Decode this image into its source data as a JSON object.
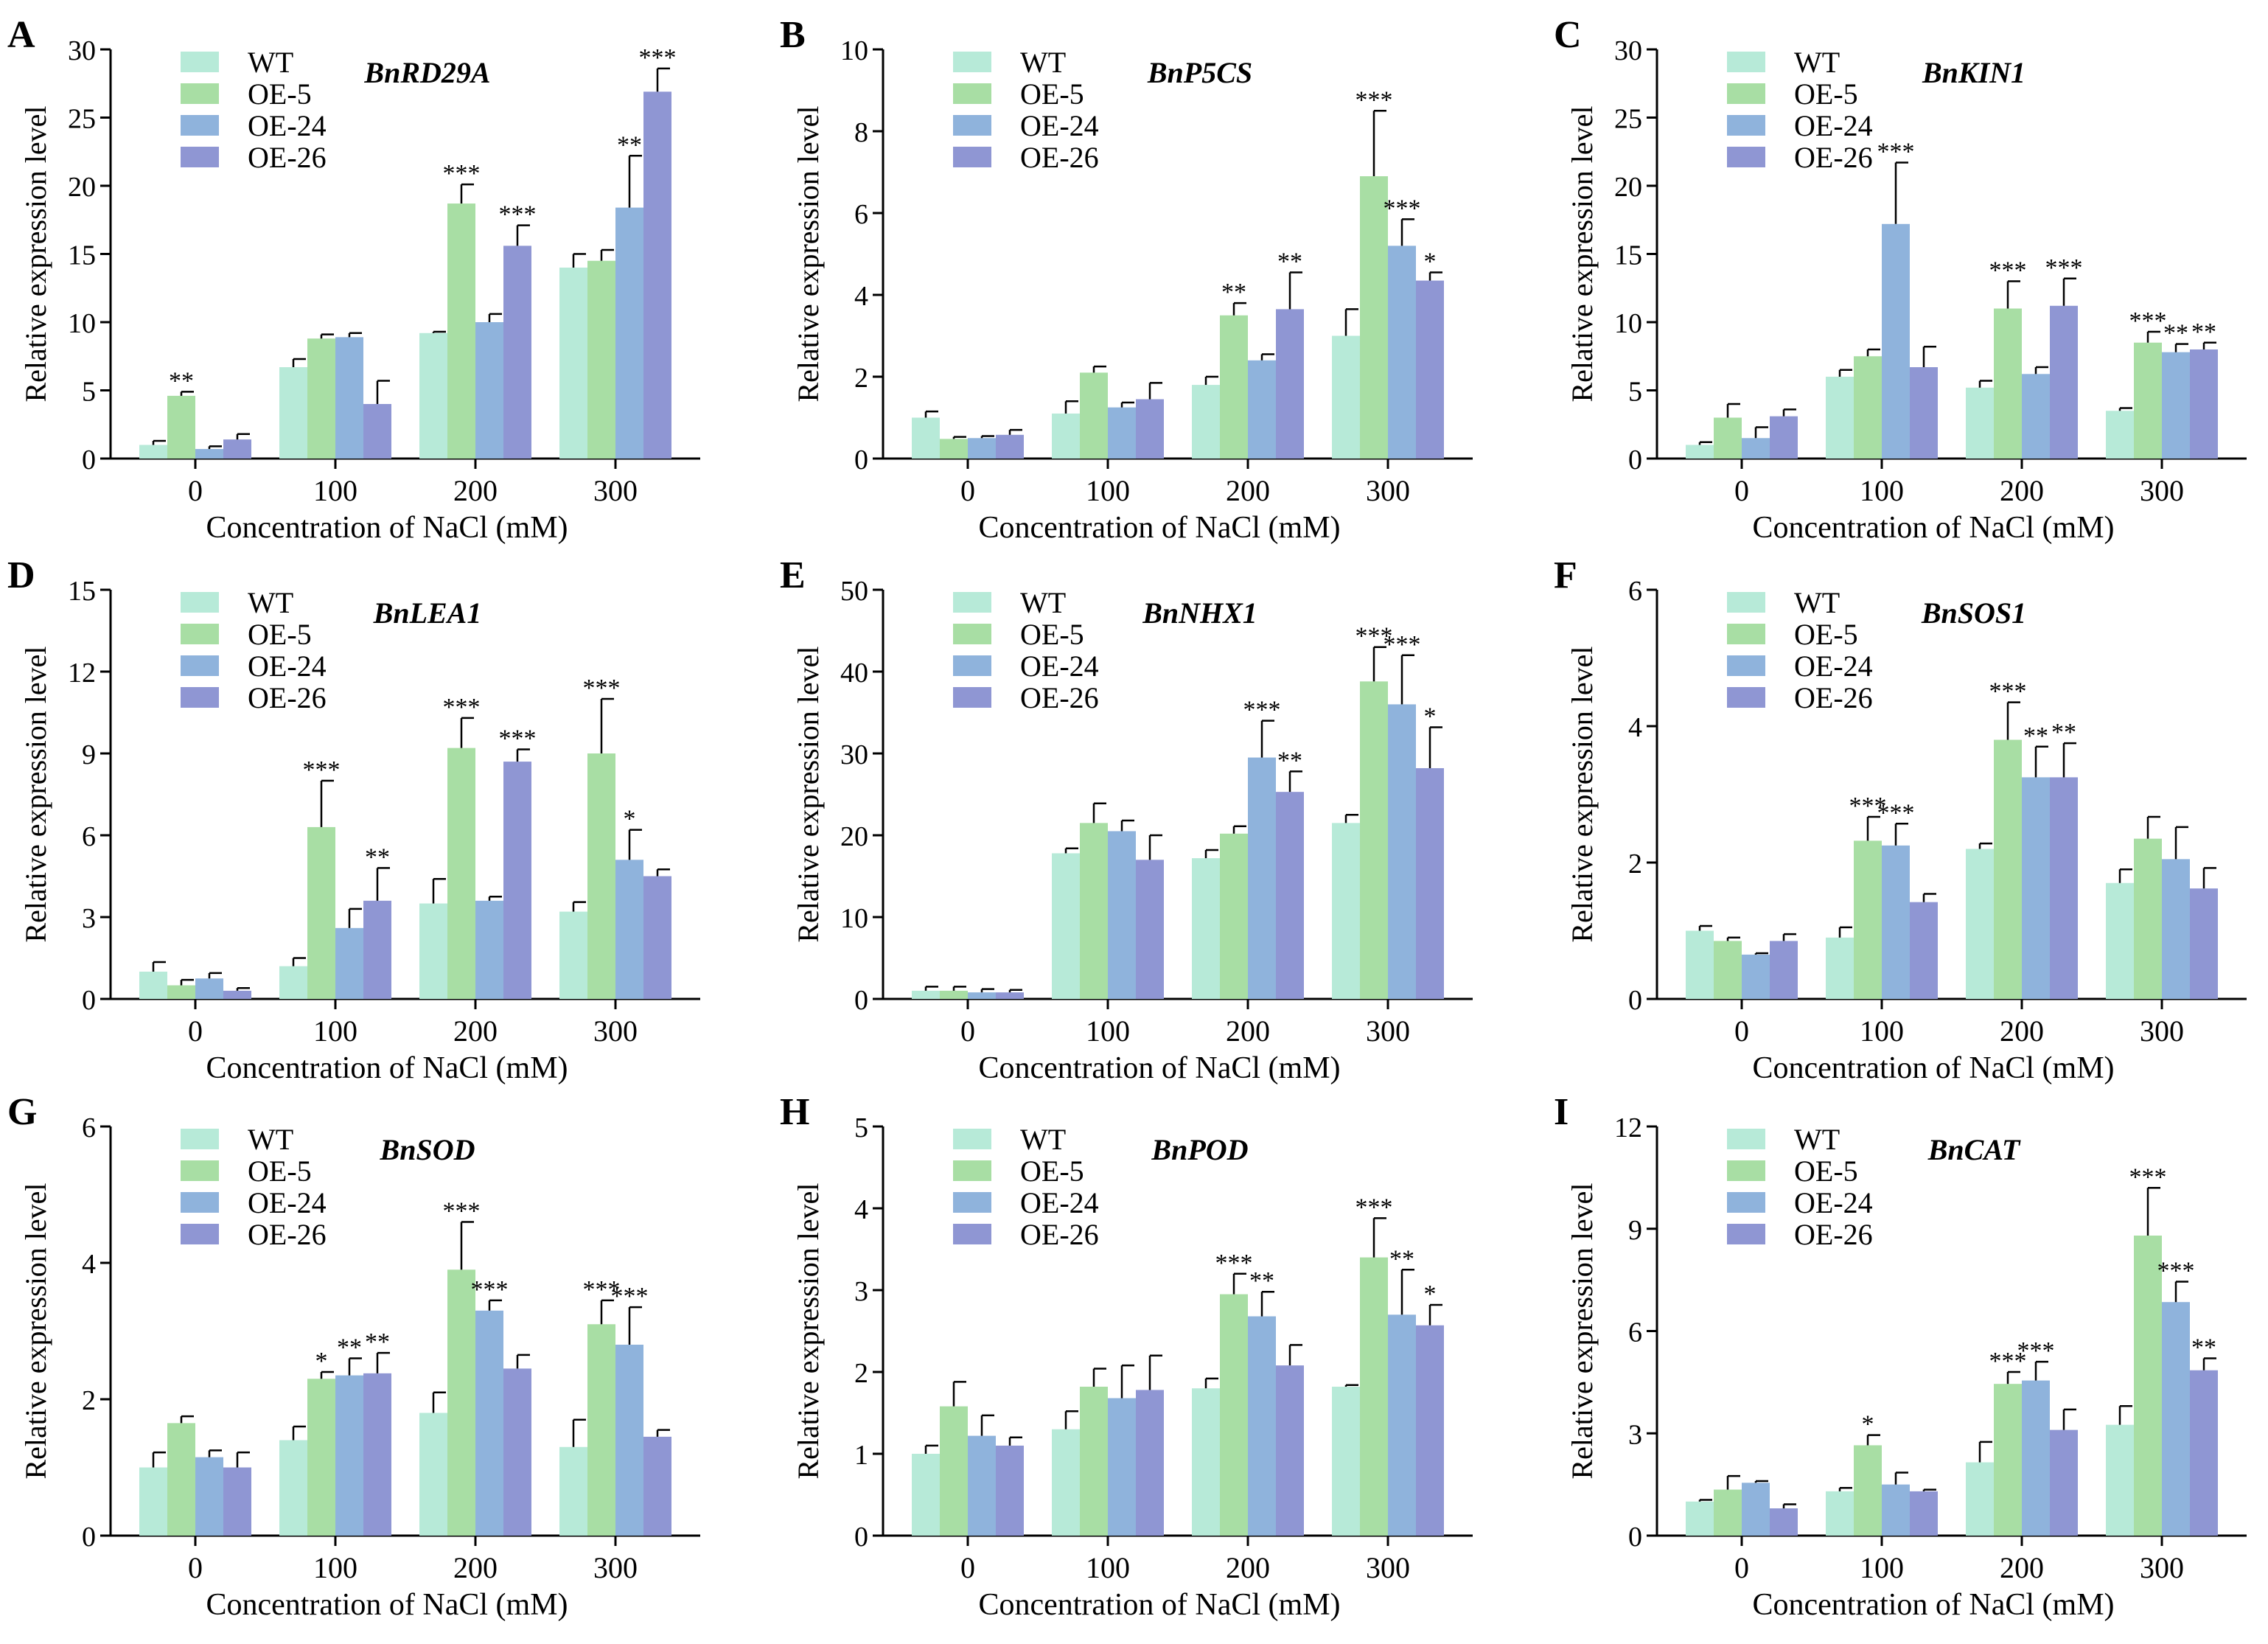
{
  "figure": {
    "categories": [
      "0",
      "100",
      "200",
      "300"
    ],
    "xlabel": "Concentration of NaCl (mM)",
    "ylabel": "Relative expression level",
    "legend": [
      "WT",
      "OE-5",
      "OE-24",
      "OE-26"
    ],
    "colors": [
      "#b7ead8",
      "#a8dea4",
      "#8fb3dc",
      "#8f96d3"
    ]
  },
  "chart_data": [
    {
      "type": "bar",
      "panel": "A",
      "title": "BnRD29A",
      "ylim": [
        0,
        30
      ],
      "yticks": [
        0,
        5,
        10,
        15,
        20,
        25,
        30
      ],
      "series": [
        {
          "name": "WT",
          "values": [
            1.0,
            6.7,
            9.2,
            14.0
          ],
          "errors": [
            0.3,
            0.6,
            0.1,
            1.0
          ],
          "sig": [
            "",
            "",
            "",
            ""
          ]
        },
        {
          "name": "OE-5",
          "values": [
            4.6,
            8.8,
            18.7,
            14.5
          ],
          "errors": [
            0.3,
            0.3,
            1.4,
            0.8
          ],
          "sig": [
            "**",
            "",
            "***",
            ""
          ]
        },
        {
          "name": "OE-24",
          "values": [
            0.7,
            8.9,
            10.0,
            18.4
          ],
          "errors": [
            0.2,
            0.3,
            0.6,
            3.8
          ],
          "sig": [
            "",
            "",
            "",
            "**"
          ]
        },
        {
          "name": "OE-26",
          "values": [
            1.4,
            4.0,
            15.6,
            26.9
          ],
          "errors": [
            0.4,
            1.7,
            1.5,
            1.7
          ],
          "sig": [
            "",
            "",
            "***",
            "***"
          ]
        }
      ]
    },
    {
      "type": "bar",
      "panel": "B",
      "title": "BnP5CS",
      "ylim": [
        0,
        10
      ],
      "yticks": [
        0,
        2,
        4,
        6,
        8,
        10
      ],
      "series": [
        {
          "name": "WT",
          "values": [
            1.0,
            1.1,
            1.8,
            3.0
          ],
          "errors": [
            0.15,
            0.3,
            0.2,
            0.65
          ],
          "sig": [
            "",
            "",
            "",
            ""
          ]
        },
        {
          "name": "OE-5",
          "values": [
            0.48,
            2.1,
            3.5,
            6.9
          ],
          "errors": [
            0.05,
            0.15,
            0.3,
            1.6
          ],
          "sig": [
            "",
            "",
            "**",
            "***"
          ]
        },
        {
          "name": "OE-24",
          "values": [
            0.5,
            1.25,
            2.4,
            5.2
          ],
          "errors": [
            0.05,
            0.12,
            0.15,
            0.65
          ],
          "sig": [
            "",
            "",
            "",
            "***"
          ]
        },
        {
          "name": "OE-26",
          "values": [
            0.58,
            1.45,
            3.65,
            4.35
          ],
          "errors": [
            0.12,
            0.4,
            0.9,
            0.2
          ],
          "sig": [
            "",
            "",
            "**",
            "*"
          ]
        }
      ]
    },
    {
      "type": "bar",
      "panel": "C",
      "title": "BnKIN1",
      "ylim": [
        0,
        30
      ],
      "yticks": [
        0,
        5,
        10,
        15,
        20,
        25,
        30
      ],
      "series": [
        {
          "name": "WT",
          "values": [
            1.0,
            6.0,
            5.2,
            3.5
          ],
          "errors": [
            0.2,
            0.5,
            0.5,
            0.2
          ],
          "sig": [
            "",
            "",
            "",
            ""
          ]
        },
        {
          "name": "OE-5",
          "values": [
            3.0,
            7.5,
            11.0,
            8.5
          ],
          "errors": [
            1.0,
            0.5,
            2.0,
            0.8
          ],
          "sig": [
            "",
            "",
            "***",
            "***"
          ]
        },
        {
          "name": "OE-24",
          "values": [
            1.5,
            17.2,
            6.2,
            7.8
          ],
          "errors": [
            0.8,
            4.5,
            0.5,
            0.6
          ],
          "sig": [
            "",
            "***",
            "",
            "**"
          ]
        },
        {
          "name": "OE-26",
          "values": [
            3.1,
            6.7,
            11.2,
            8.0
          ],
          "errors": [
            0.5,
            1.5,
            2.0,
            0.5
          ],
          "sig": [
            "",
            "",
            "***",
            "**"
          ]
        }
      ]
    },
    {
      "type": "bar",
      "panel": "D",
      "title": "BnLEA1",
      "ylim": [
        0,
        15
      ],
      "yticks": [
        0,
        3,
        6,
        9,
        12,
        15
      ],
      "series": [
        {
          "name": "WT",
          "values": [
            1.0,
            1.2,
            3.5,
            3.2
          ],
          "errors": [
            0.35,
            0.3,
            0.9,
            0.35
          ],
          "sig": [
            "",
            "",
            "",
            ""
          ]
        },
        {
          "name": "OE-5",
          "values": [
            0.5,
            6.3,
            9.2,
            9.0
          ],
          "errors": [
            0.2,
            1.7,
            1.1,
            2.0
          ],
          "sig": [
            "",
            "***",
            "***",
            "***"
          ]
        },
        {
          "name": "OE-24",
          "values": [
            0.75,
            2.6,
            3.6,
            5.1
          ],
          "errors": [
            0.2,
            0.7,
            0.15,
            1.1
          ],
          "sig": [
            "",
            "",
            "",
            "*"
          ]
        },
        {
          "name": "OE-26",
          "values": [
            0.3,
            3.6,
            8.7,
            4.5
          ],
          "errors": [
            0.1,
            1.2,
            0.45,
            0.25
          ],
          "sig": [
            "",
            "**",
            "***",
            ""
          ]
        }
      ]
    },
    {
      "type": "bar",
      "panel": "E",
      "title": "BnNHX1",
      "ylim": [
        0,
        50
      ],
      "yticks": [
        0,
        10,
        20,
        30,
        40,
        50
      ],
      "series": [
        {
          "name": "WT",
          "values": [
            1.0,
            17.8,
            17.2,
            21.5
          ],
          "errors": [
            0.5,
            0.6,
            1.0,
            1.0
          ],
          "sig": [
            "",
            "",
            "",
            ""
          ]
        },
        {
          "name": "OE-5",
          "values": [
            1.0,
            21.5,
            20.2,
            38.8
          ],
          "errors": [
            0.5,
            2.4,
            0.9,
            4.2
          ],
          "sig": [
            "",
            "",
            "",
            "***"
          ]
        },
        {
          "name": "OE-24",
          "values": [
            0.8,
            20.5,
            29.5,
            36.0
          ],
          "errors": [
            0.4,
            1.3,
            4.5,
            6.0
          ],
          "sig": [
            "",
            "",
            "***",
            "***"
          ]
        },
        {
          "name": "OE-26",
          "values": [
            0.8,
            17.0,
            25.3,
            28.2
          ],
          "errors": [
            0.3,
            3.0,
            2.5,
            5.0
          ],
          "sig": [
            "",
            "",
            "**",
            "*"
          ]
        }
      ]
    },
    {
      "type": "bar",
      "panel": "F",
      "title": "BnSOS1",
      "ylim": [
        0,
        6
      ],
      "yticks": [
        0,
        2,
        4,
        6
      ],
      "series": [
        {
          "name": "WT",
          "values": [
            1.0,
            0.9,
            2.2,
            1.7
          ],
          "errors": [
            0.07,
            0.15,
            0.08,
            0.2
          ],
          "sig": [
            "",
            "",
            "",
            ""
          ]
        },
        {
          "name": "OE-5",
          "values": [
            0.85,
            2.32,
            3.8,
            2.35
          ],
          "errors": [
            0.05,
            0.35,
            0.55,
            0.32
          ],
          "sig": [
            "",
            "***",
            "***",
            ""
          ]
        },
        {
          "name": "OE-24",
          "values": [
            0.65,
            2.25,
            3.25,
            2.05
          ],
          "errors": [
            0.02,
            0.32,
            0.45,
            0.47
          ],
          "sig": [
            "",
            "***",
            "**",
            ""
          ]
        },
        {
          "name": "OE-26",
          "values": [
            0.85,
            1.42,
            3.25,
            1.62
          ],
          "errors": [
            0.1,
            0.12,
            0.5,
            0.3
          ],
          "sig": [
            "",
            "",
            "**",
            ""
          ]
        }
      ]
    },
    {
      "type": "bar",
      "panel": "G",
      "title": "BnSOD",
      "ylim": [
        0,
        6
      ],
      "yticks": [
        0,
        2,
        4,
        6
      ],
      "series": [
        {
          "name": "WT",
          "values": [
            1.0,
            1.4,
            1.8,
            1.3
          ],
          "errors": [
            0.22,
            0.2,
            0.3,
            0.4
          ],
          "sig": [
            "",
            "",
            "",
            ""
          ]
        },
        {
          "name": "OE-5",
          "values": [
            1.65,
            2.3,
            3.9,
            3.1
          ],
          "errors": [
            0.1,
            0.1,
            0.7,
            0.35
          ],
          "sig": [
            "",
            "*",
            "***",
            "***"
          ]
        },
        {
          "name": "OE-24",
          "values": [
            1.15,
            2.35,
            3.3,
            2.8
          ],
          "errors": [
            0.1,
            0.25,
            0.15,
            0.55
          ],
          "sig": [
            "",
            "**",
            "***",
            "***"
          ]
        },
        {
          "name": "OE-26",
          "values": [
            1.0,
            2.38,
            2.45,
            1.45
          ],
          "errors": [
            0.22,
            0.3,
            0.2,
            0.1
          ],
          "sig": [
            "",
            "**",
            "",
            ""
          ]
        }
      ]
    },
    {
      "type": "bar",
      "panel": "H",
      "title": "BnPOD",
      "ylim": [
        0,
        5
      ],
      "yticks": [
        0,
        1,
        2,
        3,
        4,
        5
      ],
      "series": [
        {
          "name": "WT",
          "values": [
            1.0,
            1.3,
            1.8,
            1.82
          ],
          "errors": [
            0.1,
            0.22,
            0.12,
            0.02
          ],
          "sig": [
            "",
            "",
            "",
            ""
          ]
        },
        {
          "name": "OE-5",
          "values": [
            1.58,
            1.82,
            2.95,
            3.4
          ],
          "errors": [
            0.3,
            0.22,
            0.25,
            0.48
          ],
          "sig": [
            "",
            "",
            "***",
            "***"
          ]
        },
        {
          "name": "OE-24",
          "values": [
            1.22,
            1.68,
            2.68,
            2.7
          ],
          "errors": [
            0.25,
            0.4,
            0.3,
            0.55
          ],
          "sig": [
            "",
            "",
            "**",
            "**"
          ]
        },
        {
          "name": "OE-26",
          "values": [
            1.1,
            1.78,
            2.08,
            2.57
          ],
          "errors": [
            0.1,
            0.42,
            0.25,
            0.25
          ],
          "sig": [
            "",
            "",
            "",
            "*"
          ]
        }
      ]
    },
    {
      "type": "bar",
      "panel": "I",
      "title": "BnCAT",
      "ylim": [
        0,
        12
      ],
      "yticks": [
        0,
        3,
        6,
        9,
        12
      ],
      "series": [
        {
          "name": "WT",
          "values": [
            1.0,
            1.3,
            2.15,
            3.25
          ],
          "errors": [
            0.05,
            0.1,
            0.6,
            0.55
          ],
          "sig": [
            "",
            "",
            "",
            ""
          ]
        },
        {
          "name": "OE-5",
          "values": [
            1.35,
            2.65,
            4.45,
            8.8
          ],
          "errors": [
            0.4,
            0.3,
            0.35,
            1.4
          ],
          "sig": [
            "",
            "*",
            "***",
            "***"
          ]
        },
        {
          "name": "OE-24",
          "values": [
            1.55,
            1.5,
            4.55,
            6.85
          ],
          "errors": [
            0.05,
            0.35,
            0.55,
            0.6
          ],
          "sig": [
            "",
            "",
            "***",
            "***"
          ]
        },
        {
          "name": "OE-26",
          "values": [
            0.8,
            1.3,
            3.1,
            4.85
          ],
          "errors": [
            0.12,
            0.05,
            0.6,
            0.35
          ],
          "sig": [
            "",
            "",
            "",
            "**"
          ]
        }
      ]
    }
  ]
}
